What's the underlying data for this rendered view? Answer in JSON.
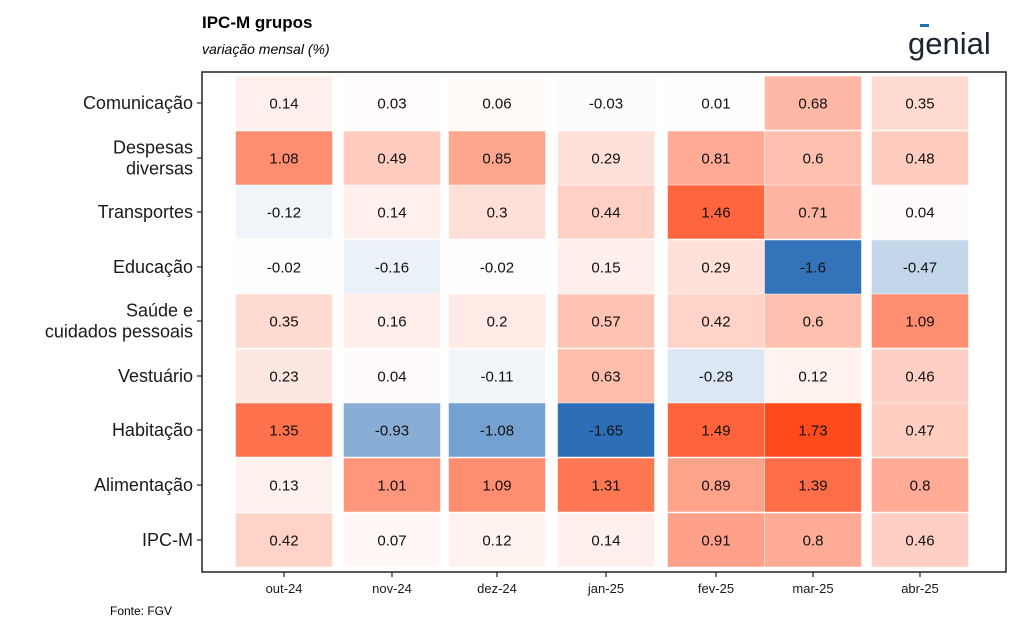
{
  "header": {
    "title": "IPC-M grupos",
    "subtitle": "variação mensal (%)",
    "logo_text": "genial"
  },
  "footer": {
    "source": "Fonte: FGV"
  },
  "colors": {
    "positive": "#FF4A1C",
    "negative": "#2C6FB7",
    "neutral": "#FFFFFF",
    "axis": "#222222"
  },
  "chart_data": {
    "type": "heatmap",
    "title": "IPC-M grupos",
    "subtitle": "variação mensal (%)",
    "x_categories": [
      "out-24",
      "nov-24",
      "dez-24",
      "jan-25",
      "fev-25",
      "mar-25",
      "abr-25"
    ],
    "y_categories": [
      "Comunicação",
      "Despesas diversas",
      "Transportes",
      "Educação",
      "Saúde e cuidados pessoais",
      "Vestuário",
      "Habitação",
      "Alimentação",
      "IPC-M"
    ],
    "values": [
      [
        0.14,
        0.03,
        0.06,
        -0.03,
        0.01,
        0.68,
        0.35
      ],
      [
        1.08,
        0.49,
        0.85,
        0.29,
        0.81,
        0.6,
        0.48
      ],
      [
        -0.12,
        0.14,
        0.3,
        0.44,
        1.46,
        0.71,
        0.04
      ],
      [
        -0.02,
        -0.16,
        -0.02,
        0.15,
        0.29,
        -1.6,
        -0.47
      ],
      [
        0.35,
        0.16,
        0.2,
        0.57,
        0.42,
        0.6,
        1.09
      ],
      [
        0.23,
        0.04,
        -0.11,
        0.63,
        -0.28,
        0.12,
        0.46
      ],
      [
        1.35,
        -0.93,
        -1.08,
        -1.65,
        1.49,
        1.73,
        0.47
      ],
      [
        0.13,
        1.01,
        1.09,
        1.31,
        0.89,
        1.39,
        0.8
      ],
      [
        0.42,
        0.07,
        0.12,
        0.14,
        0.91,
        0.8,
        0.46
      ]
    ],
    "color_scale": {
      "min": -1.65,
      "max": 1.73,
      "low": "#2C6FB7",
      "mid": "#FFFFFF",
      "high": "#FF4A1C"
    },
    "grid": false,
    "legend": "none"
  }
}
